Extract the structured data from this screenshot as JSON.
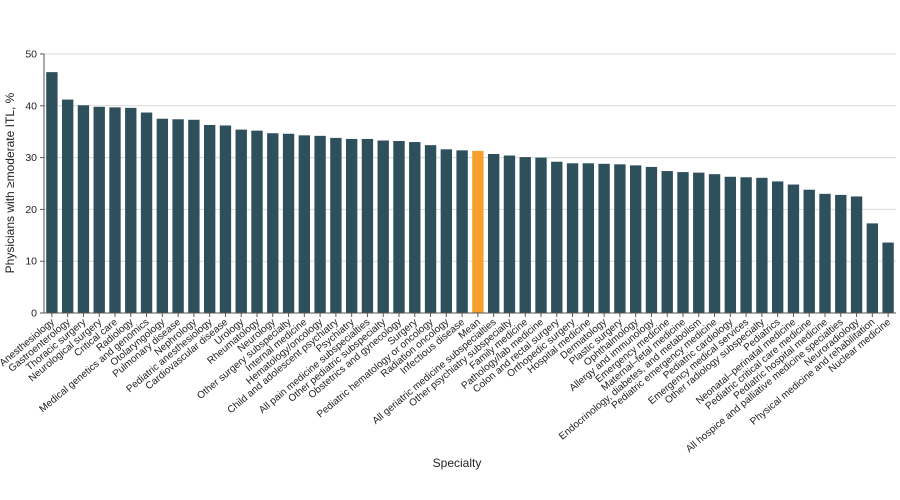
{
  "chart_data": {
    "type": "bar",
    "title": "",
    "xlabel": "Specialty",
    "ylabel": "Physicians with ≥moderate ITL, %",
    "ylim": [
      0,
      50
    ],
    "yticks": [
      0,
      10,
      20,
      30,
      40,
      50
    ],
    "grid": true,
    "colors": {
      "bar": "#2e4f5c",
      "highlight": "#f5a02a",
      "grid": "#d9d9d9",
      "axis": "#555555"
    },
    "highlight_category": "Mean",
    "categories": [
      "Anesthesiology",
      "Gastroenterology",
      "Thoracic surgery",
      "Neurological surgery",
      "Critical care",
      "Radiology",
      "Medical genetics and genomics",
      "Otolaryngology",
      "Pulmonary disease",
      "Nephrology",
      "Pediatric anesthesiology",
      "Cardiovascular disease",
      "Urology",
      "Rheumatology",
      "Neurology",
      "Other surgery subspecialty",
      "Internal medicine",
      "Hematology/oncology",
      "Child and adolescent psychiatry",
      "Psychiatry",
      "All pain medicine subspecialties",
      "Other pediatric subspecialty",
      "Obstetrics and gynecology",
      "Surgery",
      "Pediatric hematology or oncology",
      "Radiation oncology",
      "Infectious disease",
      "Mean",
      "All geriatric medicine subspecialties",
      "Other psychiatry subspecialty",
      "Family medicine",
      "Pathology/lab medicine",
      "Colon and rectal surgery",
      "Orthopedic surgery",
      "Hospital medicine",
      "Dermatology",
      "Plastic surgery",
      "Ophthalmology",
      "Allergy and immunology",
      "Emergency medicine",
      "Maternal–fetal medicine",
      "Endocrinology, diabetes, and metabolism",
      "Pediatric emergency medicine",
      "Pediatric cardiology",
      "Emergency medical services",
      "Other radiology subspecialty",
      "Pediatrics",
      "Neonatal–perinatal medicine",
      "Pediatric critical care medicine",
      "Pediatric hospital medicine",
      "All hospice and palliative medicine specialties",
      "Neuroradiology",
      "Physical medicine and rehabilitation",
      "Nuclear medicine"
    ],
    "values": [
      46.5,
      41.2,
      40.1,
      39.8,
      39.7,
      39.6,
      38.7,
      37.5,
      37.4,
      37.3,
      36.3,
      36.2,
      35.4,
      35.2,
      34.7,
      34.6,
      34.3,
      34.2,
      33.8,
      33.6,
      33.6,
      33.3,
      33.2,
      33.0,
      32.4,
      31.6,
      31.4,
      31.3,
      30.7,
      30.4,
      30.1,
      30.0,
      29.2,
      28.9,
      28.9,
      28.8,
      28.7,
      28.5,
      28.2,
      27.4,
      27.2,
      27.1,
      26.8,
      26.3,
      26.2,
      26.1,
      25.4,
      24.8,
      23.8,
      23.0,
      22.8,
      22.5,
      17.3,
      13.6
    ]
  }
}
